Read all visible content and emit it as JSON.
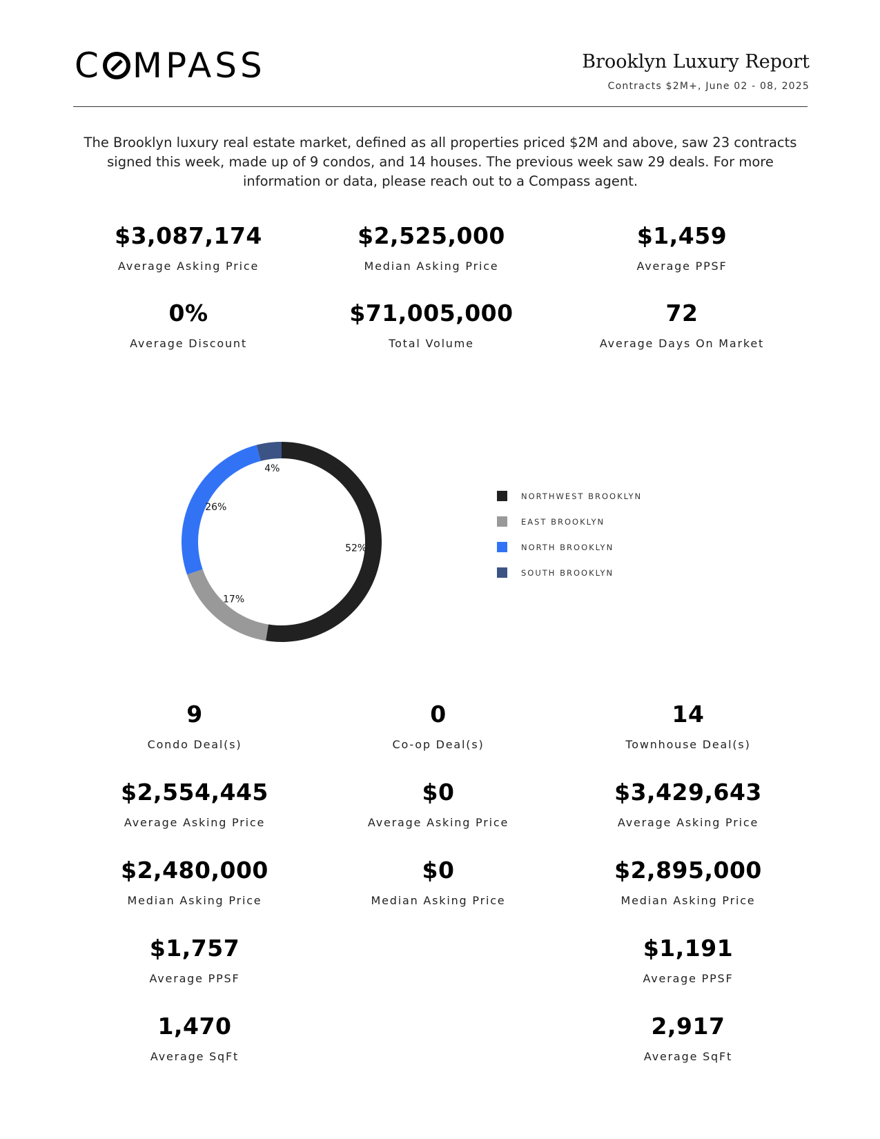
{
  "header": {
    "logo": "COMPASS",
    "report_title": "Brooklyn Luxury Report",
    "report_subtitle": "Contracts $2M+, June 02 - 08, 2025"
  },
  "intro": "The Brooklyn luxury real estate market, defined as all properties priced $2M and above, saw 23 contracts signed this week, made up of 9 condos, and 14 houses. The previous week saw 29 deals. For more information or data, please reach out to a Compass agent.",
  "summary_stats": [
    {
      "value": "$3,087,174",
      "label": "Average Asking Price"
    },
    {
      "value": "$2,525,000",
      "label": "Median Asking Price"
    },
    {
      "value": "$1,459",
      "label": "Average PPSF"
    },
    {
      "value": "0%",
      "label": "Average Discount"
    },
    {
      "value": "$71,005,000",
      "label": "Total Volume"
    },
    {
      "value": "72",
      "label": "Average Days On Market"
    }
  ],
  "chart_data": {
    "type": "pie",
    "style": "donut",
    "categories": [
      "NORTHWEST BROOKLYN",
      "EAST BROOKLYN",
      "NORTH BROOKLYN",
      "SOUTH BROOKLYN"
    ],
    "values": [
      52,
      17,
      26,
      4
    ],
    "value_labels": [
      "52%",
      "17%",
      "26%",
      "4%"
    ],
    "colors": [
      "#212121",
      "#999999",
      "#3273f6",
      "#3c5485"
    ],
    "legend_position": "right"
  },
  "condo": {
    "deals": {
      "value": "9",
      "label": "Condo Deal(s)"
    },
    "avg_price": {
      "value": "$2,554,445",
      "label": "Average Asking Price"
    },
    "median_price": {
      "value": "$2,480,000",
      "label": "Median Asking Price"
    },
    "ppsf": {
      "value": "$1,757",
      "label": "Average PPSF"
    },
    "sqft": {
      "value": "1,470",
      "label": "Average SqFt"
    }
  },
  "coop": {
    "deals": {
      "value": "0",
      "label": "Co-op Deal(s)"
    },
    "avg_price": {
      "value": "$0",
      "label": "Average Asking Price"
    },
    "median_price": {
      "value": "$0",
      "label": "Median Asking Price"
    }
  },
  "townhouse": {
    "deals": {
      "value": "14",
      "label": "Townhouse Deal(s)"
    },
    "avg_price": {
      "value": "$3,429,643",
      "label": "Average Asking Price"
    },
    "median_price": {
      "value": "$2,895,000",
      "label": "Median Asking Price"
    },
    "ppsf": {
      "value": "$1,191",
      "label": "Average PPSF"
    },
    "sqft": {
      "value": "2,917",
      "label": "Average SqFt"
    }
  }
}
